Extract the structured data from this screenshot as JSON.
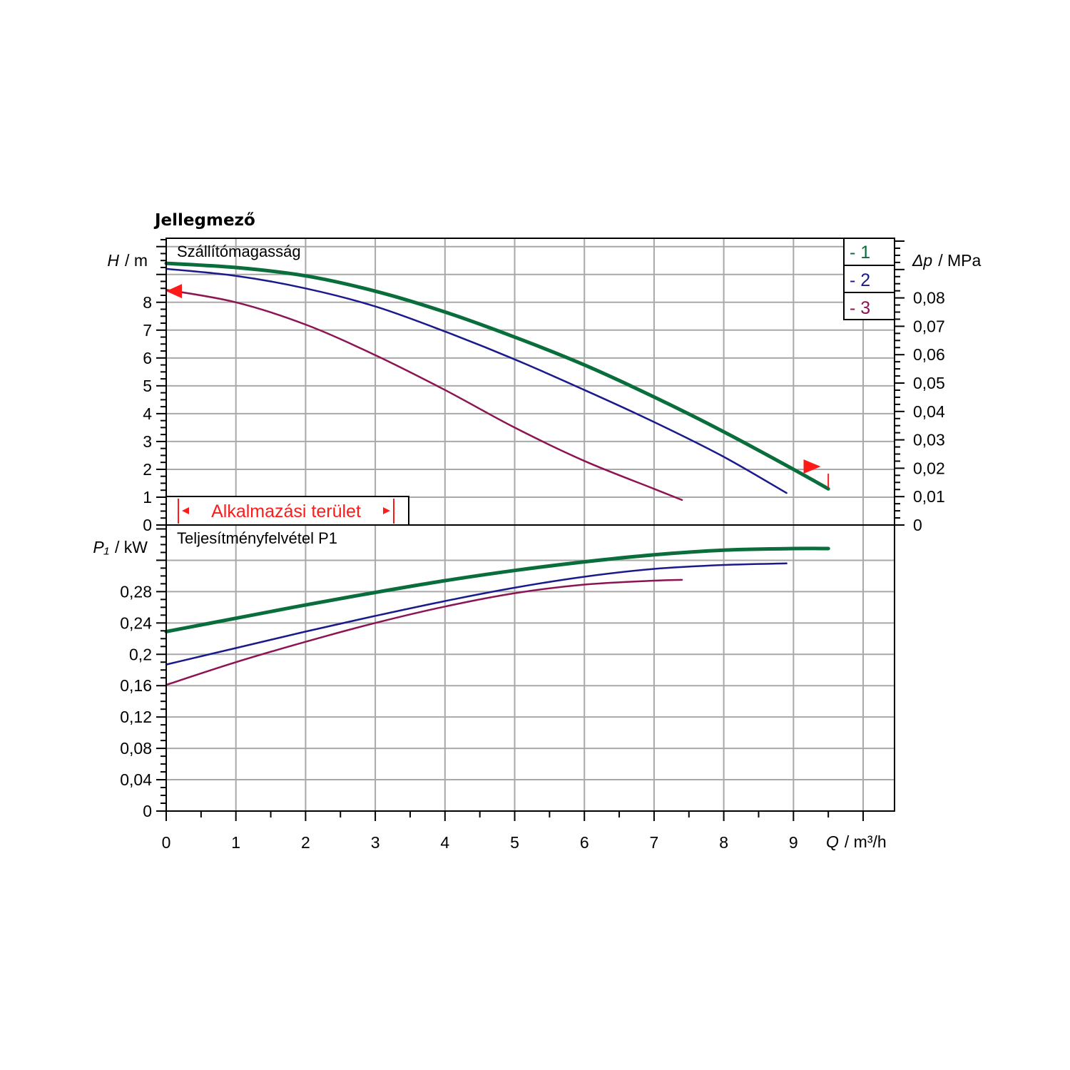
{
  "chart_data": {
    "type": "line",
    "title": "Jellegmező",
    "colors": {
      "1": "#0a6e3c",
      "2": "#1a1a8c",
      "3": "#8c1452",
      "area": "#ff1a1a"
    },
    "head_panel": {
      "title": "Szállítómagasság",
      "ylabel_symbol": "H",
      "ylabel_unit": "/ m",
      "y2label_symbol": "Δp",
      "y2label_unit": "/ MPa",
      "ylim": [
        0,
        10.3
      ],
      "yticks": [
        "0",
        "1",
        "2",
        "3",
        "4",
        "5",
        "6",
        "7",
        "8"
      ],
      "y2ticks": [
        "0",
        "0,01",
        "0,02",
        "0,03",
        "0,04",
        "0,05",
        "0,06",
        "0,07",
        "0,08"
      ],
      "series": [
        {
          "name": "1",
          "color": "#0a6e3c",
          "x": [
            0,
            1,
            2,
            3,
            4,
            5,
            6,
            7,
            8,
            9,
            9.5
          ],
          "y": [
            9.4,
            9.25,
            8.95,
            8.4,
            7.65,
            6.75,
            5.75,
            4.6,
            3.35,
            2.0,
            1.3
          ]
        },
        {
          "name": "2",
          "color": "#1a1a8c",
          "x": [
            0,
            1,
            2,
            3,
            4,
            5,
            6,
            7,
            8,
            8.9
          ],
          "y": [
            9.2,
            8.95,
            8.5,
            7.85,
            6.95,
            5.95,
            4.85,
            3.7,
            2.45,
            1.15
          ]
        },
        {
          "name": "3",
          "color": "#8c1452",
          "x": [
            0,
            1,
            2,
            3,
            4,
            5,
            6,
            7,
            7.4
          ],
          "y": [
            8.45,
            8.0,
            7.2,
            6.1,
            4.85,
            3.5,
            2.3,
            1.3,
            0.9
          ]
        }
      ]
    },
    "power_panel": {
      "title": "Teljesítményfelvétel P1",
      "ylabel_symbol": "P₁",
      "ylabel_unit": "/ kW",
      "ylim": [
        0,
        0.365
      ],
      "yticks": [
        "0",
        "0,04",
        "0,08",
        "0,12",
        "0,16",
        "0,2",
        "0,24",
        "0,28"
      ],
      "series": [
        {
          "name": "1",
          "color": "#0a6e3c",
          "x": [
            0,
            1,
            2,
            3,
            4,
            5,
            6,
            7,
            8,
            9,
            9.5
          ],
          "y": [
            0.229,
            0.246,
            0.263,
            0.279,
            0.294,
            0.307,
            0.318,
            0.327,
            0.333,
            0.335,
            0.335
          ]
        },
        {
          "name": "2",
          "color": "#1a1a8c",
          "x": [
            0,
            1,
            2,
            3,
            4,
            5,
            6,
            7,
            8,
            8.9
          ],
          "y": [
            0.187,
            0.208,
            0.229,
            0.249,
            0.268,
            0.285,
            0.299,
            0.309,
            0.314,
            0.316
          ]
        },
        {
          "name": "3",
          "color": "#8c1452",
          "x": [
            0,
            1,
            2,
            3,
            4,
            5,
            6,
            7,
            7.4
          ],
          "y": [
            0.161,
            0.19,
            0.216,
            0.24,
            0.261,
            0.278,
            0.289,
            0.294,
            0.295
          ]
        }
      ]
    },
    "x_axis": {
      "label_symbol": "Q",
      "label_unit": "/ m³/h",
      "xlim": [
        0,
        10.45
      ],
      "xticks": [
        "0",
        "1",
        "2",
        "3",
        "4",
        "5",
        "6",
        "7",
        "8",
        "9"
      ]
    },
    "legend": {
      "placement": "top-right",
      "entries": [
        {
          "label": "- 1",
          "color": "#0a6e3c"
        },
        {
          "label": "- 2",
          "color": "#1a1a8c"
        },
        {
          "label": "- 3",
          "color": "#8c1452"
        }
      ]
    },
    "application_area": {
      "label": "Alkalmazási terület",
      "marker_left_h": 8.4,
      "marker_right_q": 9.35,
      "marker_right_h": 2.1
    },
    "grid": true
  }
}
